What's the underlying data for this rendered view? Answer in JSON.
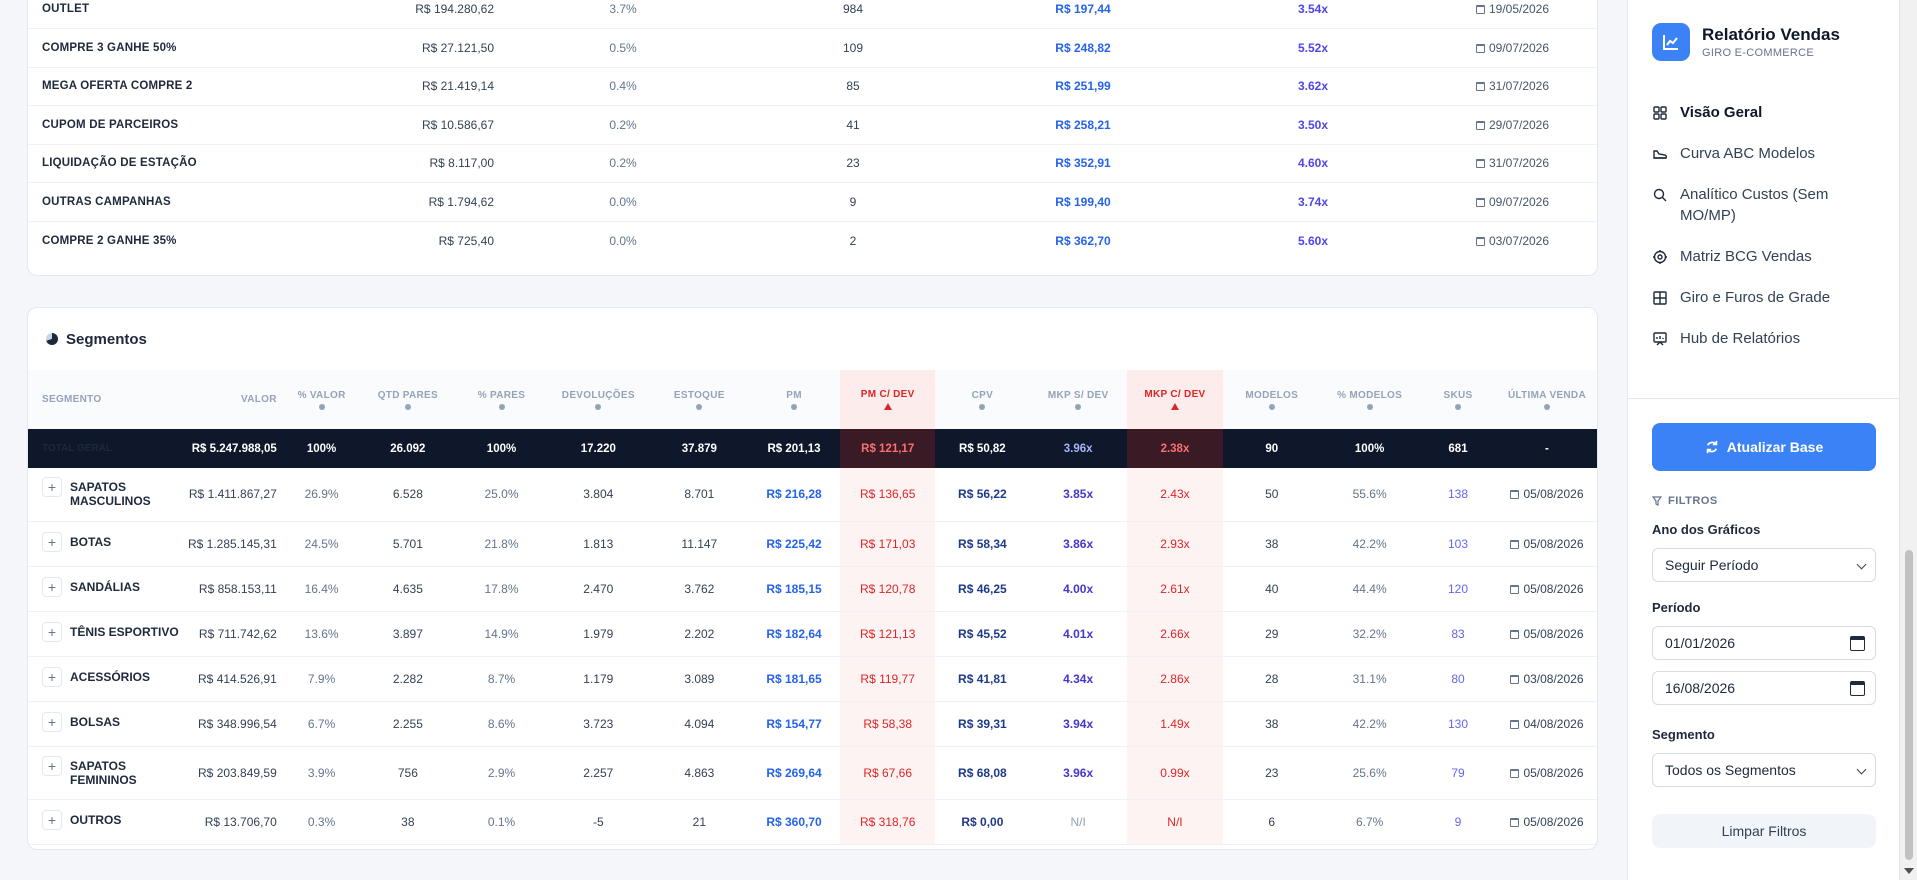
{
  "campaigns": [
    {
      "name": "OUTLET",
      "valor": "R$ 194.280,62",
      "pct": "3.7%",
      "qtd": "984",
      "pm": "R$ 197,44",
      "mkp": "3.54x",
      "date": "19/05/2026"
    },
    {
      "name": "COMPRE 3 GANHE 50%",
      "valor": "R$ 27.121,50",
      "pct": "0.5%",
      "qtd": "109",
      "pm": "R$ 248,82",
      "mkp": "5.52x",
      "date": "09/07/2026"
    },
    {
      "name": "MEGA OFERTA COMPRE 2",
      "valor": "R$ 21.419,14",
      "pct": "0.4%",
      "qtd": "85",
      "pm": "R$ 251,99",
      "mkp": "3.62x",
      "date": "31/07/2026"
    },
    {
      "name": "CUPOM DE PARCEIROS",
      "valor": "R$ 10.586,67",
      "pct": "0.2%",
      "qtd": "41",
      "pm": "R$ 258,21",
      "mkp": "3.50x",
      "date": "29/07/2026"
    },
    {
      "name": "LIQUIDAÇÃO DE ESTAÇÃO",
      "valor": "R$ 8.117,00",
      "pct": "0.2%",
      "qtd": "23",
      "pm": "R$ 352,91",
      "mkp": "4.60x",
      "date": "31/07/2026"
    },
    {
      "name": "OUTRAS CAMPANHAS",
      "valor": "R$ 1.794,62",
      "pct": "0.0%",
      "qtd": "9",
      "pm": "R$ 199,40",
      "mkp": "3.74x",
      "date": "09/07/2026"
    },
    {
      "name": "COMPRE 2 GANHE 35%",
      "valor": "R$ 725,40",
      "pct": "0.0%",
      "qtd": "2",
      "pm": "R$ 362,70",
      "mkp": "5.60x",
      "date": "03/07/2026"
    }
  ],
  "segments": {
    "title": "Segmentos",
    "columns": [
      "SEGMENTO",
      "VALOR",
      "% VALOR",
      "QTD PARES",
      "% PARES",
      "DEVOLUÇÕES",
      "ESTOQUE",
      "PM",
      "PM C/ DEV",
      "CPV",
      "MKP S/ DEV",
      "MKP C/ DEV",
      "MODELOS",
      "% MODELOS",
      "SKUS",
      "ÚLTIMA VENDA"
    ],
    "total": {
      "name": "TOTAL GERAL",
      "valor": "R$ 5.247.988,05",
      "pct_valor": "100%",
      "qtd": "26.092",
      "pct_pares": "100%",
      "dev": "17.220",
      "estoque": "37.879",
      "pm": "R$ 201,13",
      "pm_dev": "R$ 121,17",
      "cpv": "R$ 50,82",
      "mkp": "3.96x",
      "mkp_dev": "2.38x",
      "modelos": "90",
      "pct_modelos": "100%",
      "skus": "681",
      "ultima": "-"
    },
    "rows": [
      {
        "name": "SAPATOS MASCULINOS",
        "valor": "R$ 1.411.867,27",
        "pct_valor": "26.9%",
        "qtd": "6.528",
        "pct_pares": "25.0%",
        "dev": "3.804",
        "estoque": "8.701",
        "pm": "R$ 216,28",
        "pm_dev": "R$ 136,65",
        "cpv": "R$ 56,22",
        "mkp": "3.85x",
        "mkp_dev": "2.43x",
        "modelos": "50",
        "pct_modelos": "55.6%",
        "skus": "138",
        "ultima": "05/08/2026"
      },
      {
        "name": "BOTAS",
        "valor": "R$ 1.285.145,31",
        "pct_valor": "24.5%",
        "qtd": "5.701",
        "pct_pares": "21.8%",
        "dev": "1.813",
        "estoque": "11.147",
        "pm": "R$ 225,42",
        "pm_dev": "R$ 171,03",
        "cpv": "R$ 58,34",
        "mkp": "3.86x",
        "mkp_dev": "2.93x",
        "modelos": "38",
        "pct_modelos": "42.2%",
        "skus": "103",
        "ultima": "05/08/2026"
      },
      {
        "name": "SANDÁLIAS",
        "valor": "R$ 858.153,11",
        "pct_valor": "16.4%",
        "qtd": "4.635",
        "pct_pares": "17.8%",
        "dev": "2.470",
        "estoque": "3.762",
        "pm": "R$ 185,15",
        "pm_dev": "R$ 120,78",
        "cpv": "R$ 46,25",
        "mkp": "4.00x",
        "mkp_dev": "2.61x",
        "modelos": "40",
        "pct_modelos": "44.4%",
        "skus": "120",
        "ultima": "05/08/2026"
      },
      {
        "name": "TÊNIS ESPORTIVO",
        "valor": "R$ 711.742,62",
        "pct_valor": "13.6%",
        "qtd": "3.897",
        "pct_pares": "14.9%",
        "dev": "1.979",
        "estoque": "2.202",
        "pm": "R$ 182,64",
        "pm_dev": "R$ 121,13",
        "cpv": "R$ 45,52",
        "mkp": "4.01x",
        "mkp_dev": "2.66x",
        "modelos": "29",
        "pct_modelos": "32.2%",
        "skus": "83",
        "ultima": "05/08/2026"
      },
      {
        "name": "ACESSÓRIOS",
        "valor": "R$ 414.526,91",
        "pct_valor": "7.9%",
        "qtd": "2.282",
        "pct_pares": "8.7%",
        "dev": "1.179",
        "estoque": "3.089",
        "pm": "R$ 181,65",
        "pm_dev": "R$ 119,77",
        "cpv": "R$ 41,81",
        "mkp": "4.34x",
        "mkp_dev": "2.86x",
        "modelos": "28",
        "pct_modelos": "31.1%",
        "skus": "80",
        "ultima": "03/08/2026"
      },
      {
        "name": "BOLSAS",
        "valor": "R$ 348.996,54",
        "pct_valor": "6.7%",
        "qtd": "2.255",
        "pct_pares": "8.6%",
        "dev": "3.723",
        "estoque": "4.094",
        "pm": "R$ 154,77",
        "pm_dev": "R$ 58,38",
        "cpv": "R$ 39,31",
        "mkp": "3.94x",
        "mkp_dev": "1.49x",
        "modelos": "38",
        "pct_modelos": "42.2%",
        "skus": "130",
        "ultima": "04/08/2026"
      },
      {
        "name": "SAPATOS FEMININOS",
        "valor": "R$ 203.849,59",
        "pct_valor": "3.9%",
        "qtd": "756",
        "pct_pares": "2.9%",
        "dev": "2.257",
        "estoque": "4.863",
        "pm": "R$ 269,64",
        "pm_dev": "R$ 67,66",
        "cpv": "R$ 68,08",
        "mkp": "3.96x",
        "mkp_dev": "0.99x",
        "modelos": "23",
        "pct_modelos": "25.6%",
        "skus": "79",
        "ultima": "05/08/2026"
      },
      {
        "name": "OUTROS",
        "valor": "R$ 13.706,70",
        "pct_valor": "0.3%",
        "qtd": "38",
        "pct_pares": "0.1%",
        "dev": "-5",
        "estoque": "21",
        "pm": "R$ 360,70",
        "pm_dev": "R$ 318,76",
        "cpv": "R$ 0,00",
        "mkp": "N/I",
        "mkp_dev": "N/I",
        "modelos": "6",
        "pct_modelos": "6.7%",
        "skus": "9",
        "ultima": "05/08/2026"
      }
    ]
  },
  "sidebar": {
    "title": "Relatório Vendas",
    "subtitle": "GIRO E-COMMERCE",
    "nav": [
      {
        "label": "Visão Geral",
        "icon": "grid-icon"
      },
      {
        "label": "Curva ABC Modelos",
        "icon": "shoe-icon"
      },
      {
        "label": "Analítico Custos (Sem MO/MP)",
        "icon": "search-icon"
      },
      {
        "label": "Matriz BCG Vendas",
        "icon": "target-icon"
      },
      {
        "label": "Giro e Furos de Grade",
        "icon": "table-grid-icon"
      },
      {
        "label": "Hub de Relatórios",
        "icon": "presentation-icon"
      }
    ],
    "update_button": "Atualizar Base",
    "filters_label": "FILTROS",
    "year_label": "Ano dos Gráficos",
    "year_value": "Seguir Período",
    "period_label": "Período",
    "date_start": "01/01/2026",
    "date_end": "16/08/2026",
    "segment_label": "Segmento",
    "segment_value": "Todos os Segmentos",
    "clear_button": "Limpar Filtros"
  },
  "colors": {
    "accent": "#3b82f6",
    "danger": "#dc2626",
    "dark": "#0f172a"
  }
}
